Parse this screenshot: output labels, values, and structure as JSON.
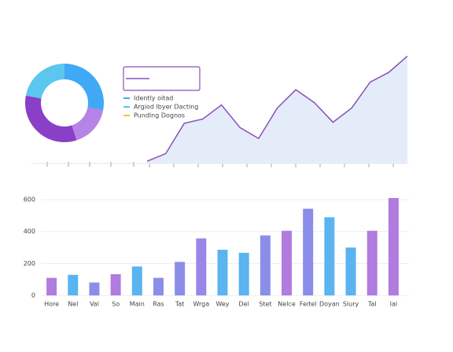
{
  "chart_data": [
    {
      "type": "donut",
      "values": [
        28,
        17,
        33,
        22
      ],
      "colors": [
        "#3fa9f5",
        "#b683e6",
        "#8a3fc8",
        "#5bc6ee"
      ]
    },
    {
      "type": "area",
      "values": [
        2,
        9,
        37,
        41,
        54,
        33,
        23,
        51,
        68,
        56,
        38,
        51,
        75,
        84,
        99
      ],
      "color": "#8a4fb8",
      "fill": "#e4ecf9",
      "ylim": [
        0,
        100
      ],
      "legend": [
        {
          "label": "Idently oitad",
          "color": "#3fa9f5"
        },
        {
          "label": "Argiod Ibyer Dacting",
          "color": "#5bc6ee"
        },
        {
          "label": "Pundlng Dognos",
          "color": "#f5c242"
        }
      ]
    },
    {
      "type": "bar",
      "categories": [
        "Hore",
        "Nel",
        "Val",
        "So",
        "Main",
        "Ras",
        "Tat",
        "Wrga",
        "Wey",
        "Del",
        "Stet",
        "Nelce",
        "Feitel",
        "Doyan",
        "Slury",
        "Tal",
        "Ial"
      ],
      "values": [
        110,
        129,
        81,
        133,
        181,
        110,
        210,
        357,
        286,
        267,
        376,
        405,
        543,
        490,
        300,
        405,
        610
      ],
      "colors": [
        "#b07ce0",
        "#5ab4f0",
        "#8b8ee8",
        "#b07ce0",
        "#5ab4f0",
        "#8b8ee8",
        "#8b8ee8",
        "#9a86e6",
        "#5ab4f0",
        "#5ab4f0",
        "#8b8ee8",
        "#b07ce0",
        "#8b8ee8",
        "#5ab4f0",
        "#5ab4f0",
        "#b07ce0",
        "#b07ce0"
      ],
      "ylim": [
        0,
        620
      ],
      "yticks": [
        0,
        200,
        400,
        600
      ],
      "grid": true
    }
  ]
}
